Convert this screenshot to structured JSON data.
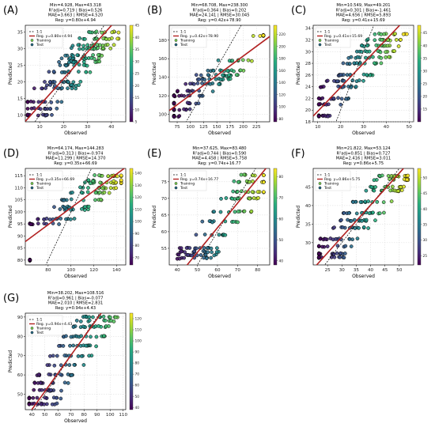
{
  "legend": {
    "one_to_one": "1:1",
    "training": "Training",
    "test": "Test"
  },
  "colors": {
    "reg_line": "#b22222",
    "one_to_one": "#000000",
    "point_edge": "#000000",
    "colormap": "viridis"
  },
  "chart_data": [
    {
      "panel": "(A)",
      "type": "scatter",
      "stats": [
        "Min=4.928, Max=43.318",
        "R²adj=0.719 | Bias=0.526",
        "MAE=3.663 | RMSE=4.520",
        "Reg: y=0.80x+4.94"
      ],
      "reg_label": "Reg. y=0.80x+4.94",
      "reg": {
        "slope": 0.8,
        "intercept": 4.94
      },
      "xlabel": "Observed",
      "ylabel": "Predicted",
      "xlim": [
        4,
        46
      ],
      "ylim": [
        8,
        37
      ],
      "xticks": [
        10,
        20,
        30,
        40
      ],
      "yticks": [
        10,
        15,
        20,
        25,
        30,
        35
      ],
      "clim": [
        5,
        45
      ],
      "cticks": [
        5,
        10,
        15,
        20,
        25,
        30,
        35,
        40,
        45
      ],
      "levels": [
        10,
        12,
        14,
        18,
        19,
        20,
        23,
        25,
        26,
        27,
        28,
        30,
        31,
        33,
        35
      ],
      "x_range": [
        5,
        43
      ]
    },
    {
      "panel": "(B)",
      "type": "scatter",
      "stats": [
        "Min=68.708, Max=238.300",
        "R²adj=0.364 | Bias=0.202",
        "MAE=24.141 | RMSE=30.045",
        "Reg: y=0.42x+78.90"
      ],
      "reg_label": "Reg. y=0.42x+78.90",
      "reg": {
        "slope": 0.42,
        "intercept": 78.9
      },
      "xlabel": "Observed",
      "ylabel": "Predicted",
      "xlim": [
        60,
        250
      ],
      "ylim": [
        92,
        196
      ],
      "xticks": [
        75,
        100,
        125,
        150,
        175,
        200,
        225
      ],
      "yticks": [
        100,
        120,
        140,
        160,
        180
      ],
      "clim": [
        75,
        235
      ],
      "cticks": [
        80,
        100,
        120,
        140,
        160,
        180,
        200,
        220
      ],
      "levels": [
        98,
        105,
        112,
        120,
        125,
        133,
        138,
        142,
        147,
        158,
        185
      ],
      "x_range": [
        69,
        238
      ]
    },
    {
      "panel": "(C)",
      "type": "scatter",
      "stats": [
        "Min=10.549, Max=49.201",
        "R²adj=0.301 | Bias=-1.461",
        "MAE=4.656 | RMSE=5.893",
        "Reg: y=0.41x+15.69"
      ],
      "reg_label": "Reg. y=0.41x+15.69",
      "reg": {
        "slope": 0.41,
        "intercept": 15.69
      },
      "xlabel": "Observed",
      "ylabel": "Predicted",
      "xlim": [
        8,
        52
      ],
      "ylim": [
        18,
        34.5
      ],
      "xticks": [
        10,
        20,
        30,
        40,
        50
      ],
      "yticks": [
        18,
        20,
        22,
        24,
        26,
        28,
        30,
        32,
        34
      ],
      "clim": [
        10,
        48
      ],
      "cticks": [
        15,
        20,
        25,
        30,
        35,
        40,
        45
      ],
      "levels": [
        19,
        21,
        22,
        24,
        25,
        26,
        28,
        29,
        30,
        31,
        32,
        33
      ],
      "x_range": [
        10.5,
        49
      ]
    },
    {
      "panel": "(D)",
      "type": "scatter",
      "stats": [
        "Min=64.174, Max=144.283",
        "R²adj=0.313 | Bias=-0.974",
        "MAE=11.299 | RMSE=14.370",
        "Reg: y=0.35x+66.69"
      ],
      "reg_label": "Reg. y=0.35x+66.69",
      "reg": {
        "slope": 0.35,
        "intercept": 66.69
      },
      "xlabel": "Observed",
      "ylabel": "Predicted",
      "xlim": [
        60,
        148
      ],
      "ylim": [
        78,
        118
      ],
      "xticks": [
        80,
        100,
        120,
        140
      ],
      "yticks": [
        80,
        85,
        90,
        95,
        100,
        105,
        110,
        115
      ],
      "clim": [
        64,
        144
      ],
      "cticks": [
        70,
        80,
        90,
        100,
        110,
        120,
        130,
        140
      ],
      "levels": [
        80,
        95,
        97,
        101,
        102,
        105,
        108,
        110,
        112,
        113,
        115
      ],
      "x_range": [
        64,
        144
      ]
    },
    {
      "panel": "(E)",
      "type": "scatter",
      "stats": [
        "Min=37.625, Max=83.480",
        "R²adj=0.744 | Bias=0.590",
        "MAE=4.458 | RMSE=5.758",
        "Reg: y=0.74x+16.77"
      ],
      "reg_label": "Reg. y=0.74x+16.77",
      "reg": {
        "slope": 0.74,
        "intercept": 16.77
      },
      "xlabel": "Observed",
      "ylabel": "Predicted",
      "xlim": [
        36,
        86
      ],
      "ylim": [
        50,
        79
      ],
      "xticks": [
        40,
        50,
        60,
        70,
        80
      ],
      "yticks": [
        55,
        60,
        65,
        70,
        75
      ],
      "clim": [
        38,
        84
      ],
      "cticks": [
        40,
        50,
        60,
        70,
        80
      ],
      "levels": [
        52,
        53,
        54,
        55,
        59,
        63,
        66,
        70,
        72,
        75,
        77
      ],
      "x_range": [
        38,
        83
      ]
    },
    {
      "panel": "(F)",
      "type": "scatter",
      "stats": [
        "Min=21.822, Max=53.124",
        "R²adj=0.851 | Bias=0.727",
        "MAE=2.416 | RMSE=3.011",
        "Reg: y=0.86x+5.75"
      ],
      "reg_label": "Reg. y=0.86x+5.75",
      "reg": {
        "slope": 0.86,
        "intercept": 5.75
      },
      "xlabel": "Observed",
      "ylabel": "Predicted",
      "xlim": [
        20,
        55
      ],
      "ylim": [
        24,
        50
      ],
      "xticks": [
        25,
        30,
        35,
        40,
        45,
        50
      ],
      "yticks": [
        30,
        35,
        40,
        45
      ],
      "clim": [
        22,
        53
      ],
      "cticks": [
        25,
        30,
        35,
        40,
        45,
        50
      ],
      "levels": [
        26,
        27,
        29,
        31,
        34,
        36,
        38,
        41,
        44,
        45,
        47,
        48
      ],
      "x_range": [
        22,
        53
      ]
    },
    {
      "panel": "(G)",
      "type": "scatter",
      "stats": [
        "Min=38.202, Max=108.516",
        "R²adj=0.961 | Bias=-0.077",
        "MAE=2.010 | RMSE=2.831",
        "Reg: y=0.94x+4.43"
      ],
      "reg_label": "Reg. y=0.94x+4.43",
      "reg": {
        "slope": 0.94,
        "intercept": 4.43
      },
      "xlabel": "Observed",
      "ylabel": "Predicted",
      "xlim": [
        35,
        112
      ],
      "ylim": [
        42,
        92
      ],
      "xticks": [
        40,
        50,
        60,
        70,
        80,
        90,
        100,
        110
      ],
      "yticks": [
        50,
        60,
        70,
        80,
        90
      ],
      "clim": [
        38,
        125
      ],
      "cticks": [
        40,
        50,
        60,
        70,
        80,
        90,
        100,
        110,
        120
      ],
      "levels": [
        45,
        48,
        52,
        56,
        60,
        65,
        70,
        75,
        80,
        85,
        88,
        90
      ],
      "x_range": [
        38,
        108
      ]
    }
  ]
}
